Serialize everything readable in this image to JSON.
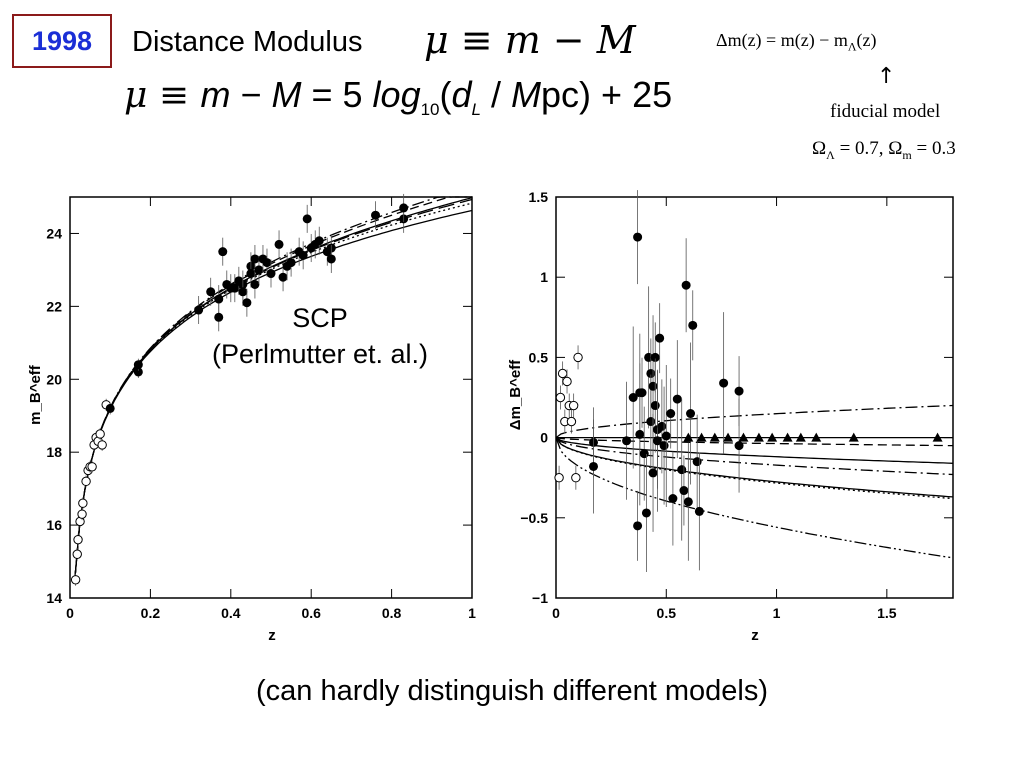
{
  "header": {
    "year": "1998",
    "title": "Distance Modulus",
    "eq_short": "μ ≡ m − M",
    "eq_full_mu": "μ ≡ ",
    "eq_full_m": "m",
    "eq_full_minus": " − ",
    "eq_full_M": "M",
    "eq_full_eq": " = 5 ",
    "eq_full_log": "log",
    "eq_full_10": "10",
    "eq_full_paren": "(",
    "eq_full_d": "d",
    "eq_full_L": "L",
    "eq_full_slash": " / ",
    "eq_full_Mpc_M": "M",
    "eq_full_pc": "pc) + 25"
  },
  "side_note": {
    "delta_eq_main": "Δm(z) = m(z) − m",
    "delta_eq_sub": "Λ",
    "delta_eq_tail": "(z)",
    "arrow": "↑",
    "fiducial": "fiducial model",
    "omega_l": "Ω",
    "omega_l_sub": "Λ",
    "omega_l_val": " = 0.7,  Ω",
    "omega_m_sub": "m",
    "omega_m_val": " = 0.3"
  },
  "scp_line1": "SCP",
  "scp_line2": "(Perlmutter et. al.)",
  "caption": "(can hardly distinguish different models)",
  "chart_data": [
    {
      "type": "scatter",
      "xlabel": "z",
      "ylabel": "m_B^eff",
      "xlim": [
        0,
        1
      ],
      "ylim": [
        14,
        25
      ],
      "xticks": [
        "0",
        "0.2",
        "0.4",
        "0.6",
        "0.8",
        "1"
      ],
      "xtick_values": [
        0,
        0.2,
        0.4,
        0.6,
        0.8,
        1
      ],
      "yticks": [
        "14",
        "16",
        "18",
        "20",
        "22",
        "24"
      ],
      "ytick_values": [
        14,
        16,
        18,
        20,
        22,
        24
      ],
      "series": [
        {
          "marker": "open-circle",
          "x": [
            0.014,
            0.018,
            0.02,
            0.025,
            0.03,
            0.032,
            0.04,
            0.045,
            0.05,
            0.055,
            0.06,
            0.065,
            0.07,
            0.075,
            0.08,
            0.09
          ],
          "y": [
            14.5,
            15.2,
            15.6,
            16.1,
            16.3,
            16.6,
            17.2,
            17.5,
            17.6,
            17.6,
            18.2,
            18.4,
            18.3,
            18.5,
            18.2,
            19.3
          ]
        },
        {
          "marker": "filled-circle",
          "x": [
            0.1,
            0.17,
            0.17,
            0.32,
            0.35,
            0.37,
            0.37,
            0.38,
            0.39,
            0.4,
            0.41,
            0.42,
            0.43,
            0.43,
            0.44,
            0.45,
            0.45,
            0.46,
            0.46,
            0.47,
            0.48,
            0.49,
            0.5,
            0.52,
            0.53,
            0.54,
            0.55,
            0.57,
            0.58,
            0.59,
            0.6,
            0.61,
            0.62,
            0.64,
            0.65,
            0.65,
            0.76,
            0.83,
            0.83
          ],
          "y": [
            19.2,
            20.2,
            20.4,
            21.9,
            22.4,
            22.2,
            21.7,
            23.5,
            22.6,
            22.5,
            22.5,
            22.7,
            22.6,
            22.4,
            22.1,
            23.1,
            22.9,
            23.3,
            22.6,
            23.0,
            23.3,
            23.2,
            22.9,
            23.7,
            22.8,
            23.1,
            23.2,
            23.5,
            23.4,
            24.4,
            23.6,
            23.7,
            23.8,
            23.5,
            23.6,
            23.3,
            24.5,
            24.4,
            24.7
          ]
        }
      ],
      "model_curves": [
        {
          "style": "solid",
          "offset": 0
        },
        {
          "style": "dashed",
          "offset": 0.2
        },
        {
          "style": "dash-dot",
          "offset": 0.3
        },
        {
          "style": "dotted",
          "offset": -0.15
        },
        {
          "style": "solid",
          "offset": -0.35
        },
        {
          "style": "long-dash",
          "offset": -0.05
        }
      ]
    },
    {
      "type": "scatter",
      "xlabel": "z",
      "ylabel": "Δm_B^eff",
      "xlim": [
        0,
        1.8
      ],
      "ylim": [
        -1,
        1.5
      ],
      "xticks": [
        "0",
        "0.5",
        "1",
        "1.5"
      ],
      "xtick_values": [
        0,
        0.5,
        1,
        1.5
      ],
      "yticks": [
        "−1",
        "−0.5",
        "0",
        "0.5",
        "1",
        "1.5"
      ],
      "ytick_values": [
        -1,
        -0.5,
        0,
        0.5,
        1,
        1.5
      ],
      "series": [
        {
          "marker": "open-circle",
          "x": [
            0.014,
            0.02,
            0.03,
            0.04,
            0.05,
            0.06,
            0.07,
            0.08,
            0.09,
            0.1
          ],
          "y": [
            -0.25,
            0.25,
            0.4,
            0.1,
            0.35,
            0.2,
            0.1,
            0.2,
            -0.25,
            0.5
          ]
        },
        {
          "marker": "filled-circle",
          "x": [
            0.17,
            0.17,
            0.32,
            0.35,
            0.37,
            0.37,
            0.38,
            0.38,
            0.39,
            0.4,
            0.41,
            0.42,
            0.43,
            0.43,
            0.44,
            0.44,
            0.45,
            0.45,
            0.46,
            0.46,
            0.47,
            0.48,
            0.49,
            0.5,
            0.52,
            0.53,
            0.55,
            0.57,
            0.58,
            0.59,
            0.6,
            0.61,
            0.62,
            0.64,
            0.65,
            0.76,
            0.83,
            0.83
          ],
          "y": [
            -0.03,
            -0.18,
            -0.02,
            0.25,
            -0.55,
            1.25,
            0.28,
            0.02,
            0.28,
            -0.1,
            -0.47,
            0.5,
            0.4,
            0.1,
            -0.22,
            0.32,
            0.5,
            0.2,
            0.05,
            -0.02,
            0.62,
            0.07,
            -0.05,
            0.01,
            0.15,
            -0.38,
            0.24,
            -0.2,
            -0.33,
            0.95,
            -0.4,
            0.15,
            0.7,
            -0.15,
            -0.46,
            0.34,
            0.29,
            -0.05
          ]
        },
        {
          "marker": "filled-triangle",
          "x": [
            0.6,
            0.66,
            0.72,
            0.78,
            0.85,
            0.92,
            0.98,
            1.05,
            1.11,
            1.18,
            1.35,
            1.73
          ],
          "y": [
            0,
            0,
            0,
            0,
            0,
            0,
            0,
            0,
            0,
            0,
            0,
            0
          ]
        }
      ],
      "model_curves": [
        {
          "style": "dash-dot",
          "end": 0.2
        },
        {
          "style": "solid",
          "end": 0.0
        },
        {
          "style": "dashed",
          "end": -0.05
        },
        {
          "style": "solid",
          "end": -0.16
        },
        {
          "style": "dash-dot",
          "end": -0.23
        },
        {
          "style": "dotted",
          "end": -0.38
        },
        {
          "style": "solid",
          "end": -0.37
        },
        {
          "style": "dash-dot-dot",
          "end": -0.75
        }
      ]
    }
  ]
}
